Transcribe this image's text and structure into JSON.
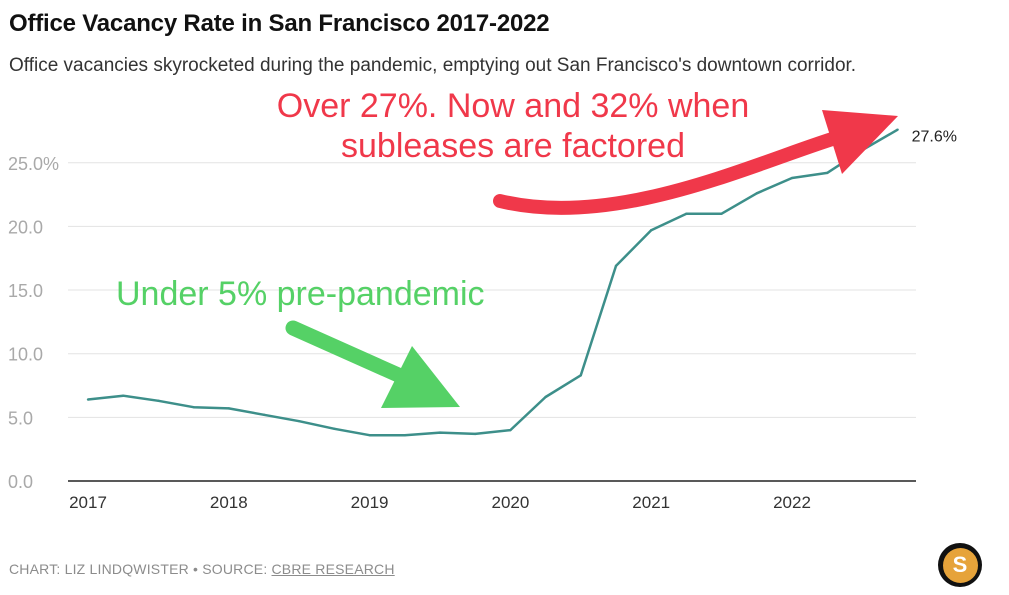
{
  "header": {
    "title": "Office Vacancy Rate in San Francisco 2017-2022",
    "subtitle": "Office vacancies skyrocketed during the pandemic, emptying out San Francisco's downtown corridor."
  },
  "footer": {
    "credit": "CHART: LIZ LINDQWISTER • SOURCE: ",
    "source": "CBRE RESEARCH"
  },
  "logo": {
    "letter": "S"
  },
  "annotations": {
    "over": [
      "Over 27%. Now and 32% when",
      "subleases are factored"
    ],
    "under": "Under 5% pre-pandemic"
  },
  "colors": {
    "line": "#3d8f8a",
    "annotation_red": "#f0384a",
    "annotation_green": "#55d166",
    "logo_gold": "#e6a33a"
  },
  "chart_data": {
    "type": "line",
    "title": "Office Vacancy Rate in San Francisco 2017-2022",
    "xlabel": "",
    "ylabel": "",
    "ylim": [
      0,
      27.6
    ],
    "yticks": [
      "0.0",
      "5.0",
      "10.0",
      "15.0",
      "20.0",
      "25.0%"
    ],
    "xticks": [
      "2017",
      "2018",
      "2019",
      "2020",
      "2021",
      "2022"
    ],
    "grid": true,
    "end_label": "27.6%",
    "series": [
      {
        "x": [
          2017.0,
          2017.25,
          2017.5,
          2017.75,
          2018.0,
          2018.25,
          2018.5,
          2018.75,
          2019.0,
          2019.25,
          2019.5,
          2019.75,
          2020.0,
          2020.25,
          2020.5,
          2020.75,
          2021.0,
          2021.25,
          2021.5,
          2021.75,
          2022.0,
          2022.25,
          2022.5,
          2022.75
        ],
        "values": [
          6.4,
          6.7,
          6.3,
          5.8,
          5.7,
          5.2,
          4.7,
          4.1,
          3.6,
          3.6,
          3.8,
          3.7,
          4.0,
          6.6,
          8.3,
          16.9,
          19.7,
          21.0,
          21.0,
          22.6,
          23.8,
          24.2,
          26.0,
          27.6
        ]
      }
    ]
  }
}
